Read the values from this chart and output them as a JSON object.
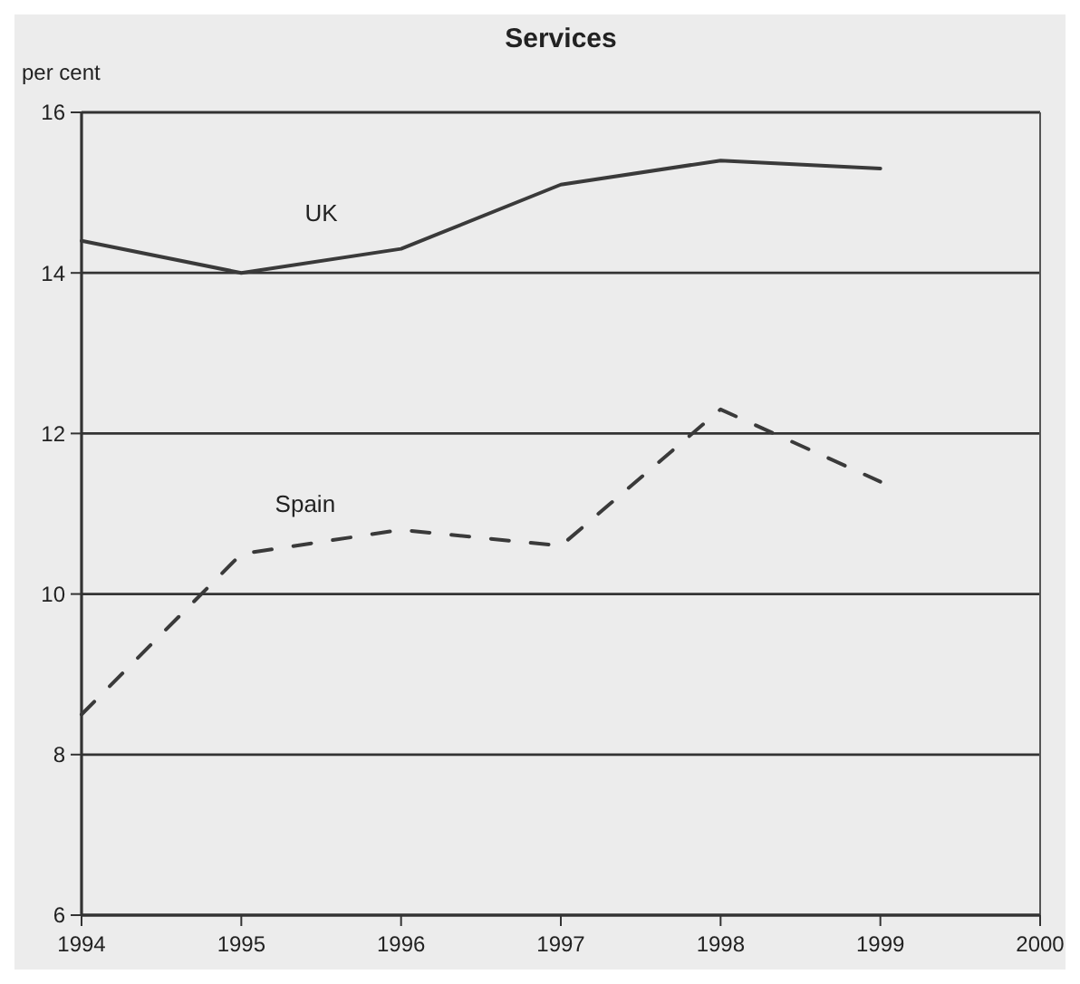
{
  "chart_data": {
    "type": "line",
    "title": "Services",
    "ylabel": "per cent",
    "x": [
      1994,
      1995,
      1996,
      1997,
      1998,
      1999
    ],
    "series": [
      {
        "name": "UK",
        "color": "#3a3a3a",
        "line_style": "solid",
        "values": [
          14.4,
          14.0,
          14.3,
          15.1,
          15.4,
          15.3
        ]
      },
      {
        "name": "Spain",
        "color": "#3a3a3a",
        "line_style": "dashed",
        "values": [
          8.5,
          10.5,
          10.8,
          10.6,
          12.3,
          11.4
        ]
      }
    ],
    "xlim": [
      1994,
      2000
    ],
    "xticks": [
      1994,
      1995,
      1996,
      1997,
      1998,
      1999,
      2000
    ],
    "ylim": [
      6,
      16
    ],
    "yticks": [
      6,
      8,
      10,
      12,
      14,
      16
    ],
    "grid": "y"
  }
}
